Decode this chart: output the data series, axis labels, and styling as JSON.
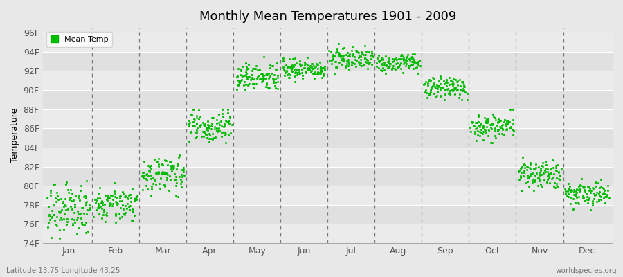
{
  "title": "Monthly Mean Temperatures 1901 - 2009",
  "ylabel": "Temperature",
  "subtitle_left": "Latitude 13.75 Longitude 43.25",
  "subtitle_right": "worldspecies.org",
  "months": [
    "Jan",
    "Feb",
    "Mar",
    "Apr",
    "May",
    "Jun",
    "Jul",
    "Aug",
    "Sep",
    "Oct",
    "Nov",
    "Dec"
  ],
  "ylim": [
    74,
    96.5
  ],
  "yticks": [
    74,
    76,
    78,
    80,
    82,
    84,
    86,
    88,
    90,
    92,
    94,
    96
  ],
  "ytick_labels": [
    "74F",
    "76F",
    "78F",
    "80F",
    "82F",
    "84F",
    "86F",
    "88F",
    "90F",
    "92F",
    "94F",
    "96F"
  ],
  "dot_color": "#00BB00",
  "dot_size": 5,
  "background_color": "#E8E8E8",
  "grid_color": "#FFFFFF",
  "dashed_line_color": "#777777",
  "n_years": 109,
  "month_mean_temps": [
    77.5,
    78.2,
    81.2,
    86.2,
    91.5,
    92.2,
    93.3,
    92.8,
    90.3,
    86.2,
    81.2,
    79.2
  ],
  "month_std_temps": [
    1.2,
    0.9,
    0.9,
    0.8,
    0.7,
    0.6,
    0.6,
    0.5,
    0.6,
    0.7,
    0.8,
    0.7
  ],
  "month_temp_ranges": [
    [
      74.5,
      80.5
    ],
    [
      75.5,
      82.0
    ],
    [
      78.5,
      85.5
    ],
    [
      84.5,
      88.0
    ],
    [
      89.5,
      93.5
    ],
    [
      90.5,
      95.5
    ],
    [
      91.5,
      95.5
    ],
    [
      90.5,
      94.5
    ],
    [
      89.0,
      92.5
    ],
    [
      84.5,
      88.0
    ],
    [
      79.5,
      83.5
    ],
    [
      74.5,
      82.5
    ]
  ]
}
